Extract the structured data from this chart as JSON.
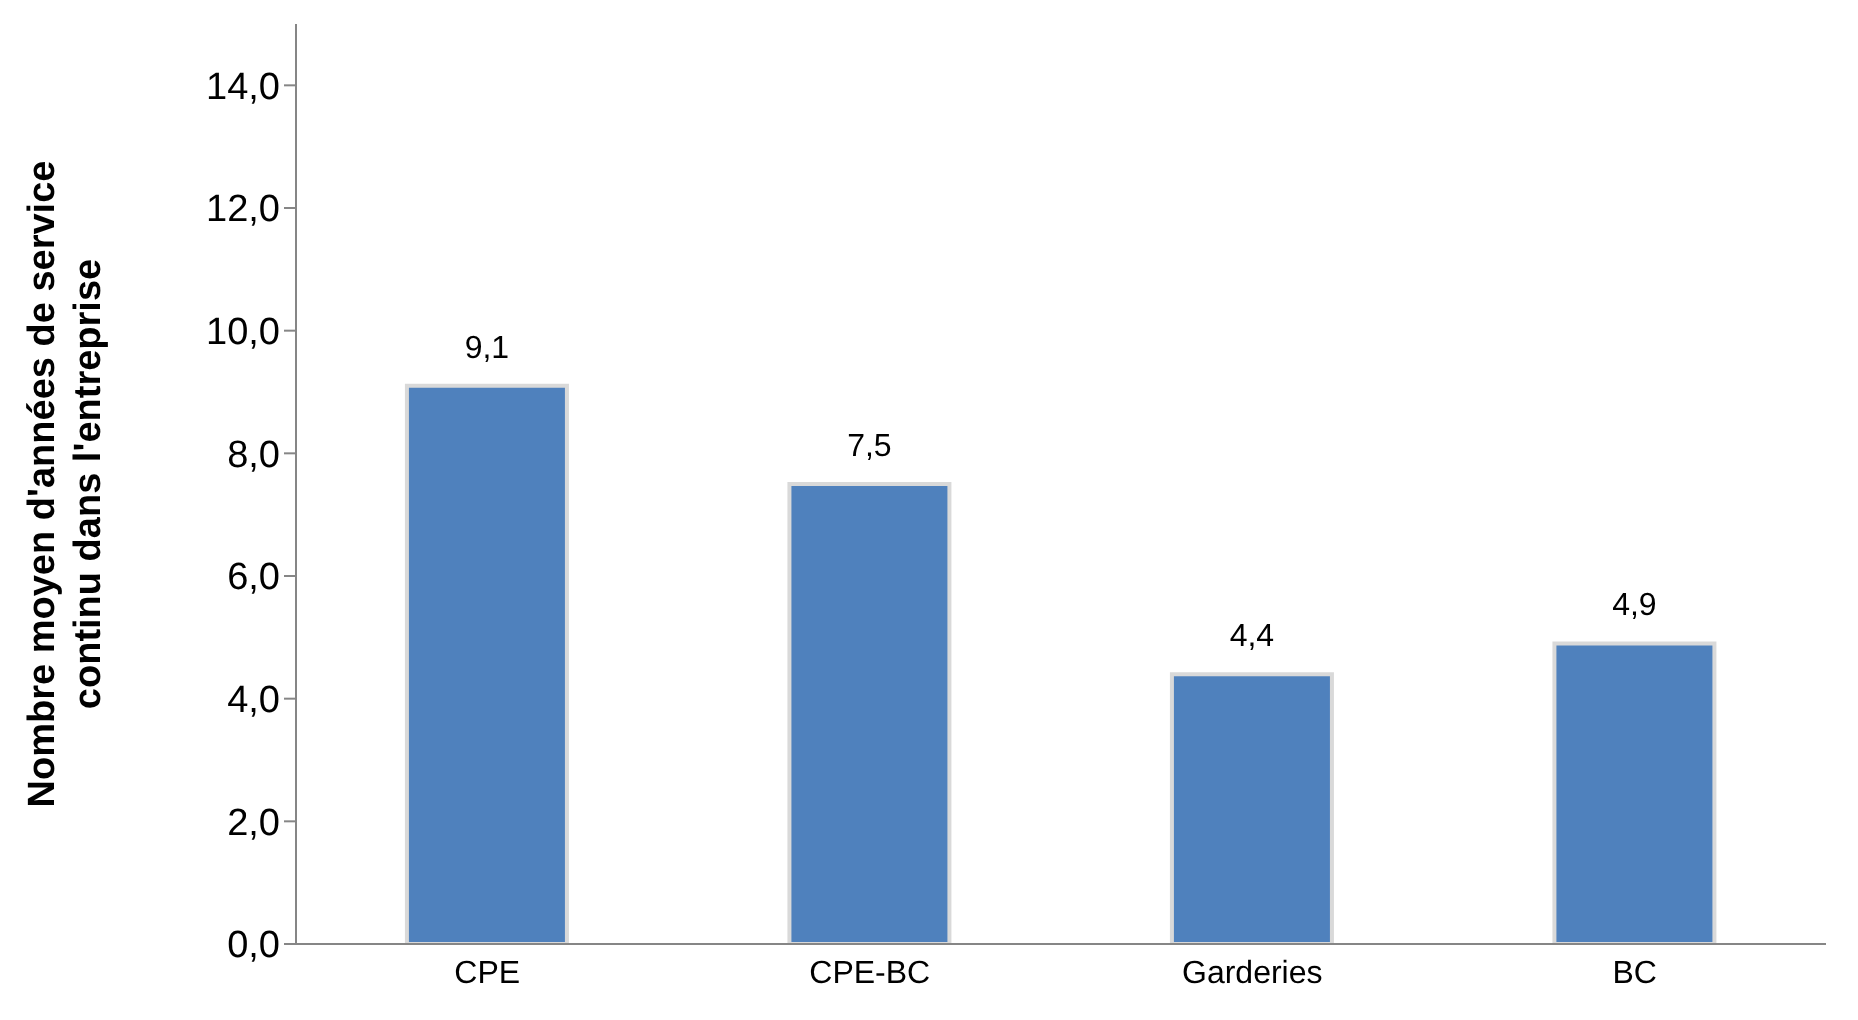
{
  "chart_data": {
    "type": "bar",
    "ylabel": "Nombre moyen d'années de service\ncontinu dans l'entreprise",
    "categories": [
      "CPE",
      "CPE-BC",
      "Garderies",
      "BC"
    ],
    "values": [
      9.1,
      7.5,
      4.4,
      4.9
    ],
    "value_labels": [
      "9,1",
      "7,5",
      "4,4",
      "4,9"
    ],
    "color": "#4f81bd",
    "ylim": [
      0,
      15
    ],
    "yticks": [
      {
        "value": 0,
        "label": "0,0"
      },
      {
        "value": 2,
        "label": "2,0"
      },
      {
        "value": 4,
        "label": "4,0"
      },
      {
        "value": 6,
        "label": "6,0"
      },
      {
        "value": 8,
        "label": "8,0"
      },
      {
        "value": 10,
        "label": "10,0"
      },
      {
        "value": 12,
        "label": "12,0"
      },
      {
        "value": 14,
        "label": "14,0"
      }
    ],
    "grid": false,
    "legend": false
  }
}
